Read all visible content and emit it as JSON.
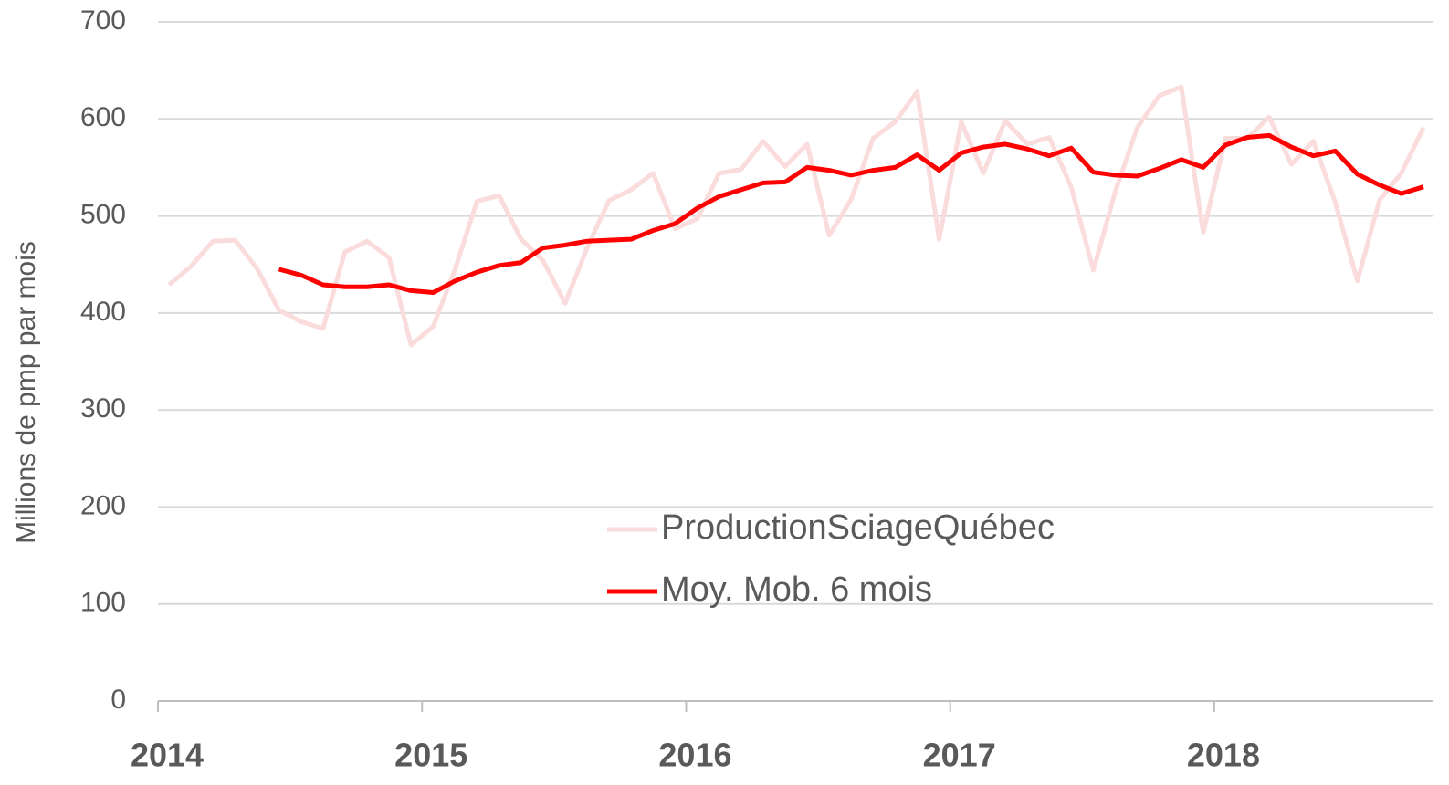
{
  "chart_data": {
    "type": "line",
    "y_label": "Millions de pmp par mois",
    "x": [
      2014.042,
      2014.125,
      2014.208,
      2014.292,
      2014.375,
      2014.458,
      2014.542,
      2014.625,
      2014.708,
      2014.792,
      2014.875,
      2014.958,
      2015.042,
      2015.125,
      2015.208,
      2015.292,
      2015.375,
      2015.458,
      2015.542,
      2015.625,
      2015.708,
      2015.792,
      2015.875,
      2015.958,
      2016.042,
      2016.125,
      2016.208,
      2016.292,
      2016.375,
      2016.458,
      2016.542,
      2016.625,
      2016.708,
      2016.792,
      2016.875,
      2016.958,
      2017.042,
      2017.125,
      2017.208,
      2017.292,
      2017.375,
      2017.458,
      2017.542,
      2017.625,
      2017.708,
      2017.792,
      2017.875,
      2017.958,
      2018.042,
      2018.125,
      2018.208,
      2018.292,
      2018.375,
      2018.458,
      2018.542,
      2018.625,
      2018.708,
      2018.792
    ],
    "series": [
      {
        "name": "ProductionSciageQuébec",
        "color": "#fbdcdc",
        "values": [
          429,
          448,
          474,
          475,
          446,
          403,
          391,
          384,
          463,
          474,
          457,
          367,
          386,
          445,
          515,
          521,
          476,
          454,
          410,
          467,
          516,
          527,
          544,
          487,
          497,
          544,
          548,
          577,
          551,
          574,
          480,
          517,
          580,
          597,
          628,
          476,
          597,
          544,
          598,
          574,
          581,
          530,
          444,
          525,
          591,
          624,
          633,
          483,
          580,
          580,
          602,
          553,
          577,
          514,
          433,
          516,
          544,
          591
        ]
      },
      {
        "name": "Moy. Mob. 6 mois",
        "color": "#ff0000",
        "values": [
          null,
          null,
          null,
          null,
          null,
          445,
          439,
          429,
          427,
          427,
          429,
          423,
          421,
          433,
          442,
          449,
          452,
          467,
          470,
          474,
          475,
          476,
          485,
          492,
          508,
          520,
          527,
          534,
          535,
          550,
          547,
          542,
          547,
          550,
          563,
          547,
          565,
          571,
          574,
          569,
          562,
          570,
          545,
          542,
          541,
          549,
          558,
          550,
          573,
          581,
          583,
          571,
          562,
          567,
          543,
          532,
          523,
          530
        ]
      }
    ],
    "xlim": [
      2014,
      2018.83
    ],
    "xticks": [
      2014,
      2015,
      2016,
      2017,
      2018
    ],
    "ylim": [
      0,
      700
    ],
    "yticks": [
      0,
      100,
      200,
      300,
      400,
      500,
      600,
      700
    ],
    "grid": true
  }
}
